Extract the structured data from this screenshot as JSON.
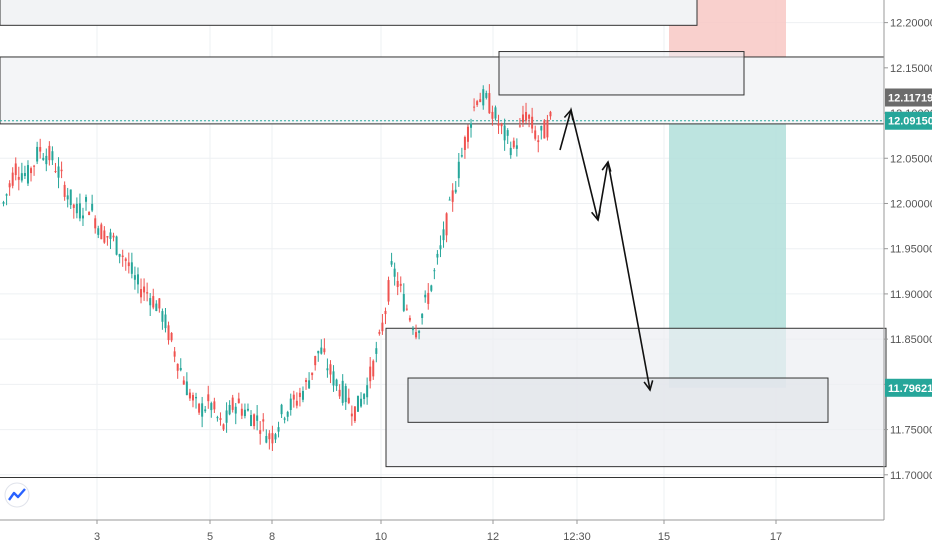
{
  "chart_data": {
    "type": "candlestick",
    "y_ticks": [
      "12.20000",
      "12.15000",
      "12.10000",
      "12.05000",
      "12.00000",
      "11.95000",
      "11.90000",
      "11.85000",
      "11.80000",
      "11.75000",
      "11.70000"
    ],
    "y_tick_values": [
      12.2,
      12.15,
      12.1,
      12.05,
      12.0,
      11.95,
      11.9,
      11.85,
      11.8,
      11.75,
      11.7
    ],
    "ylim": [
      11.65,
      12.225
    ],
    "x_ticks": [
      "3",
      "5",
      "8",
      "10",
      "12",
      "12:30",
      "15",
      "17"
    ],
    "price_labels": {
      "stop_loss": "12.11719",
      "current": "12.09150",
      "take_profit": "11.79621"
    },
    "colors": {
      "bull": "#26a69a",
      "bear": "#ef5350",
      "profit_zone": "#b2dfdb",
      "loss_zone": "#f8c8c4",
      "stop_loss_label": "#6b6b6b",
      "current_label": "#26a69a",
      "take_profit_label": "#26a69a",
      "box_fill": "#eceef2"
    },
    "horizontal_levels": [
      12.197,
      12.162,
      12.088,
      11.697
    ],
    "candles_sampled": [
      [
        12.01,
        12.02,
        11.99,
        12.0
      ],
      [
        12.0,
        12.05,
        11.99,
        12.04
      ],
      [
        12.04,
        12.06,
        12.02,
        12.03
      ],
      [
        12.03,
        12.07,
        12.02,
        12.06
      ],
      [
        12.06,
        12.08,
        12.04,
        12.05
      ],
      [
        12.05,
        12.06,
        12.01,
        12.02
      ],
      [
        12.02,
        12.03,
        11.98,
        11.99
      ],
      [
        11.99,
        12.01,
        11.97,
        12.0
      ],
      [
        12.0,
        12.01,
        11.96,
        11.97
      ],
      [
        11.97,
        11.99,
        11.95,
        11.96
      ],
      [
        11.96,
        11.97,
        11.93,
        11.94
      ],
      [
        11.94,
        11.95,
        11.9,
        11.91
      ],
      [
        11.91,
        11.93,
        11.88,
        11.9
      ],
      [
        11.9,
        11.92,
        11.87,
        11.88
      ],
      [
        11.88,
        11.89,
        11.83,
        11.84
      ],
      [
        11.84,
        11.85,
        11.79,
        11.8
      ],
      [
        11.8,
        11.81,
        11.76,
        11.77
      ],
      [
        11.77,
        11.8,
        11.75,
        11.78
      ],
      [
        11.78,
        11.79,
        11.74,
        11.75
      ],
      [
        11.75,
        11.79,
        11.73,
        11.78
      ],
      [
        11.78,
        11.8,
        11.76,
        11.77
      ],
      [
        11.77,
        11.78,
        11.74,
        11.76
      ],
      [
        11.76,
        11.77,
        11.72,
        11.74
      ],
      [
        11.74,
        11.78,
        11.72,
        11.77
      ],
      [
        11.77,
        11.79,
        11.75,
        11.78
      ],
      [
        11.78,
        11.82,
        11.76,
        11.8
      ],
      [
        11.8,
        11.86,
        11.79,
        11.84
      ],
      [
        11.84,
        11.85,
        11.8,
        11.81
      ],
      [
        11.81,
        11.82,
        11.78,
        11.79
      ],
      [
        11.79,
        11.8,
        11.76,
        11.77
      ],
      [
        11.77,
        11.81,
        11.75,
        11.8
      ],
      [
        11.8,
        11.86,
        11.79,
        11.85
      ],
      [
        11.85,
        11.96,
        11.84,
        11.93
      ],
      [
        11.93,
        11.95,
        11.88,
        11.89
      ],
      [
        11.89,
        11.9,
        11.84,
        11.86
      ],
      [
        11.86,
        11.91,
        11.85,
        11.9
      ],
      [
        11.9,
        11.96,
        11.89,
        11.95
      ],
      [
        11.95,
        12.02,
        11.94,
        12.01
      ],
      [
        12.01,
        12.08,
        12.0,
        12.07
      ],
      [
        12.07,
        12.14,
        12.06,
        12.12
      ],
      [
        12.12,
        12.17,
        12.1,
        12.11
      ],
      [
        12.11,
        12.12,
        12.07,
        12.08
      ],
      [
        12.08,
        12.1,
        12.05,
        12.06
      ],
      [
        12.06,
        12.12,
        12.03,
        12.1
      ],
      [
        12.1,
        12.15,
        12.04,
        12.07
      ],
      [
        12.07,
        12.12,
        12.05,
        12.09
      ]
    ]
  }
}
